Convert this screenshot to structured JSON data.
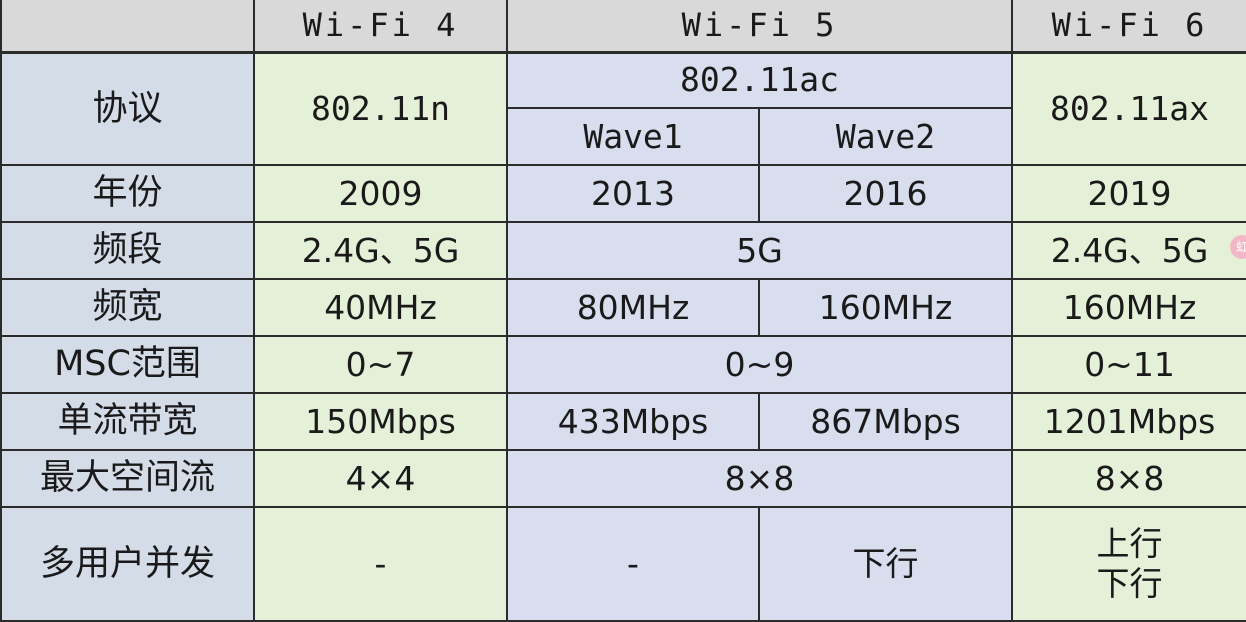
{
  "headers": {
    "corner": "",
    "wifi4": "Wi-Fi 4",
    "wifi5": "Wi-Fi 5",
    "wifi6": "Wi-Fi 6"
  },
  "protocol": {
    "label": "协议",
    "wifi4": "802.11n",
    "wifi5": "802.11ac",
    "wave1": "Wave1",
    "wave2": "Wave2",
    "wifi6": "802.11ax"
  },
  "year": {
    "label": "年份",
    "wifi4": "2009",
    "wave1": "2013",
    "wave2": "2016",
    "wifi6": "2019"
  },
  "band": {
    "label": "频段",
    "wifi4": "2.4G、5G",
    "wifi5": "5G",
    "wifi6": "2.4G、5G"
  },
  "bandwidth": {
    "label": "频宽",
    "wifi4": "40MHz",
    "wave1": "80MHz",
    "wave2": "160MHz",
    "wifi6": "160MHz"
  },
  "mcs": {
    "label": "MSC范围",
    "wifi4": "0~7",
    "wifi5": "0~9",
    "wifi6": "0~11"
  },
  "single_stream": {
    "label": "单流带宽",
    "wifi4": "150Mbps",
    "wave1": "433Mbps",
    "wave2": "867Mbps",
    "wifi6": "1201Mbps"
  },
  "spatial_streams": {
    "label": "最大空间流",
    "wifi4": "4×4",
    "wifi5": "8×8",
    "wifi6": "8×8"
  },
  "multi_user": {
    "label": "多用户并发",
    "wifi4": "-",
    "wave1": "-",
    "wave2": "下行",
    "wifi6_line1": "上行",
    "wifi6_line2": "下行"
  },
  "sticker_text": "虹"
}
